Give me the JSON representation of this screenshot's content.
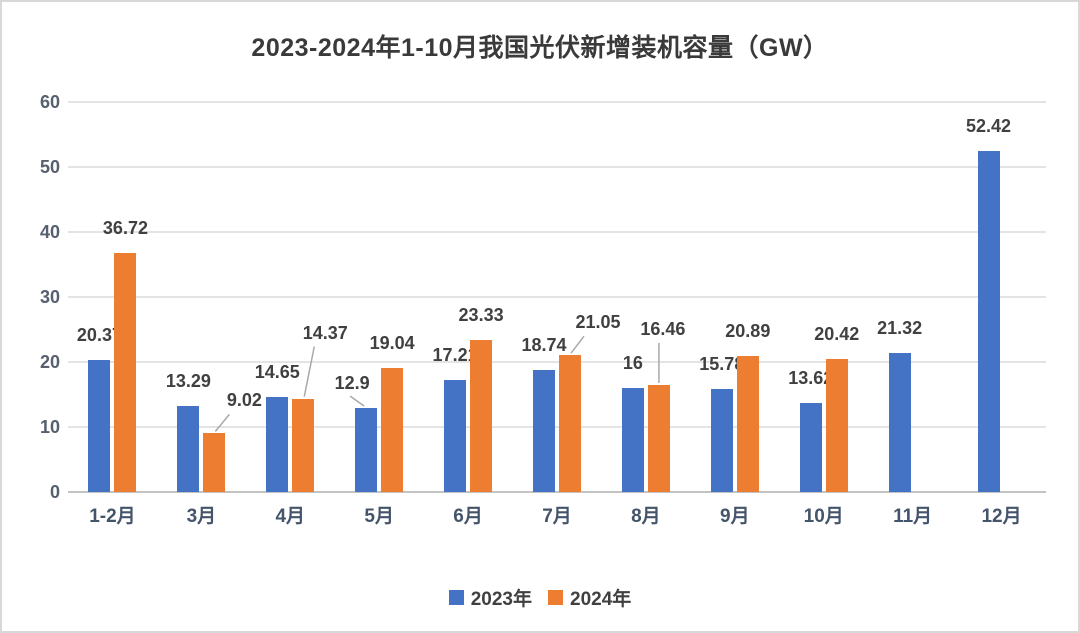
{
  "chart_data": {
    "type": "bar",
    "title": "2023-2024年1-10月我国光伏新增装机容量（GW）",
    "categories": [
      "1-2月",
      "3月",
      "4月",
      "5月",
      "6月",
      "7月",
      "8月",
      "9月",
      "10月",
      "11月",
      "12月"
    ],
    "series": [
      {
        "name": "2023年",
        "color": "#4472C4",
        "values": [
          20.37,
          13.29,
          14.65,
          12.9,
          17.21,
          18.74,
          16,
          15.78,
          13.62,
          21.32,
          52.42
        ]
      },
      {
        "name": "2024年",
        "color": "#ED7D31",
        "values": [
          36.72,
          9.02,
          14.37,
          19.04,
          23.33,
          21.05,
          16.46,
          20.89,
          20.42,
          null,
          null
        ]
      }
    ],
    "ylim": [
      0,
      60
    ],
    "yticks": [
      0,
      10,
      20,
      30,
      40,
      50,
      60
    ],
    "grid": true,
    "data_labels": true,
    "legend_position": "bottom",
    "callouts": [
      {
        "series": 1,
        "index": 1,
        "dx": 30,
        "gap": 22
      },
      {
        "series": 1,
        "index": 2,
        "dx": 22,
        "gap": 55
      },
      {
        "series": 0,
        "index": 3,
        "dx": -14,
        "gap": 14
      },
      {
        "series": 1,
        "index": 5,
        "dx": 28,
        "gap": 22
      },
      {
        "series": 1,
        "index": 6,
        "dx": 4,
        "gap": 45
      }
    ],
    "leader_color": "#a9a9a9"
  }
}
